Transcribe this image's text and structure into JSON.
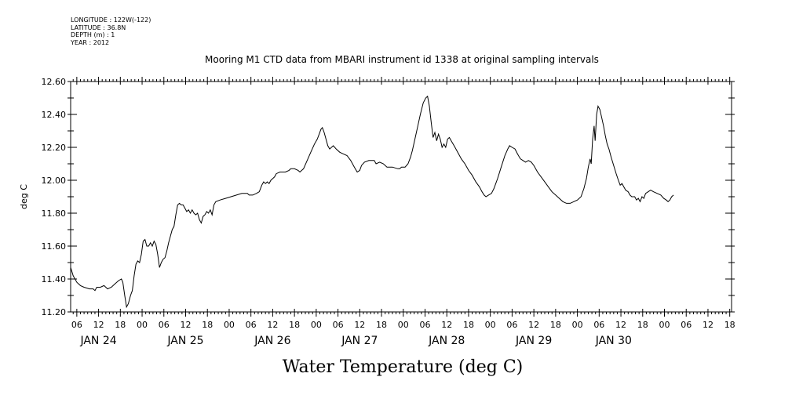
{
  "meta": {
    "longitude": "LONGITUDE : 122W(-122)",
    "latitude": "LATITUDE : 36.8N",
    "depth": "DEPTH (m) : 1",
    "year": "YEAR : 2012"
  },
  "chart_data": {
    "type": "line",
    "title": "Mooring M1 CTD data from MBARI instrument id 1338 at original sampling intervals",
    "xlabel": "Water Temperature (deg C)",
    "ylabel": "deg C",
    "ylim": [
      11.2,
      12.6
    ],
    "yticks": [
      "11.20",
      "11.40",
      "11.60",
      "11.80",
      "12.00",
      "12.20",
      "12.40",
      "12.60"
    ],
    "xlim_hours": [
      4.3,
      186.5
    ],
    "hour_ticks": [
      {
        "h": 6,
        "label": "06"
      },
      {
        "h": 12,
        "label": "12"
      },
      {
        "h": 18,
        "label": "18"
      },
      {
        "h": 24,
        "label": "00"
      },
      {
        "h": 30,
        "label": "06"
      },
      {
        "h": 36,
        "label": "12"
      },
      {
        "h": 42,
        "label": "18"
      },
      {
        "h": 48,
        "label": "00"
      },
      {
        "h": 54,
        "label": "06"
      },
      {
        "h": 60,
        "label": "12"
      },
      {
        "h": 66,
        "label": "18"
      },
      {
        "h": 72,
        "label": "00"
      },
      {
        "h": 78,
        "label": "06"
      },
      {
        "h": 84,
        "label": "12"
      },
      {
        "h": 90,
        "label": "18"
      },
      {
        "h": 96,
        "label": "00"
      },
      {
        "h": 102,
        "label": "06"
      },
      {
        "h": 108,
        "label": "12"
      },
      {
        "h": 114,
        "label": "18"
      },
      {
        "h": 120,
        "label": "00"
      },
      {
        "h": 126,
        "label": "06"
      },
      {
        "h": 132,
        "label": "12"
      },
      {
        "h": 138,
        "label": "18"
      },
      {
        "h": 144,
        "label": "00"
      },
      {
        "h": 150,
        "label": "06"
      },
      {
        "h": 156,
        "label": "12"
      },
      {
        "h": 162,
        "label": "18"
      },
      {
        "h": 168,
        "label": "00"
      },
      {
        "h": 174,
        "label": "06"
      },
      {
        "h": 180,
        "label": "12"
      },
      {
        "h": 186,
        "label": "18"
      }
    ],
    "day_labels": [
      {
        "h": 12,
        "label": "JAN 24"
      },
      {
        "h": 36,
        "label": "JAN 25"
      },
      {
        "h": 60,
        "label": "JAN 26"
      },
      {
        "h": 84,
        "label": "JAN 27"
      },
      {
        "h": 108,
        "label": "JAN 28"
      },
      {
        "h": 132,
        "label": "JAN 29"
      },
      {
        "h": 154,
        "label": "JAN 30"
      }
    ],
    "series": [
      {
        "values": [
          [
            4.3,
            11.47
          ],
          [
            5.0,
            11.42
          ],
          [
            6.0,
            11.38
          ],
          [
            7.0,
            11.36
          ],
          [
            8.0,
            11.35
          ],
          [
            9.5,
            11.34
          ],
          [
            10.5,
            11.34
          ],
          [
            11.0,
            11.33
          ],
          [
            11.5,
            11.35
          ],
          [
            12.5,
            11.35
          ],
          [
            13.5,
            11.36
          ],
          [
            14.5,
            11.34
          ],
          [
            15.5,
            11.35
          ],
          [
            16.5,
            11.37
          ],
          [
            17.5,
            11.39
          ],
          [
            18.3,
            11.4
          ],
          [
            18.7,
            11.38
          ],
          [
            19.2,
            11.3
          ],
          [
            19.7,
            11.23
          ],
          [
            20.2,
            11.25
          ],
          [
            20.8,
            11.3
          ],
          [
            21.3,
            11.33
          ],
          [
            21.8,
            11.42
          ],
          [
            22.3,
            11.49
          ],
          [
            22.8,
            11.51
          ],
          [
            23.3,
            11.5
          ],
          [
            23.8,
            11.55
          ],
          [
            24.3,
            11.63
          ],
          [
            24.8,
            11.64
          ],
          [
            25.3,
            11.6
          ],
          [
            25.8,
            11.6
          ],
          [
            26.3,
            11.62
          ],
          [
            26.8,
            11.6
          ],
          [
            27.3,
            11.63
          ],
          [
            27.8,
            11.61
          ],
          [
            28.3,
            11.55
          ],
          [
            28.8,
            11.47
          ],
          [
            29.3,
            11.5
          ],
          [
            29.8,
            11.52
          ],
          [
            30.3,
            11.53
          ],
          [
            30.8,
            11.57
          ],
          [
            31.3,
            11.62
          ],
          [
            31.8,
            11.66
          ],
          [
            32.3,
            11.7
          ],
          [
            32.8,
            11.72
          ],
          [
            33.3,
            11.79
          ],
          [
            33.8,
            11.85
          ],
          [
            34.3,
            11.86
          ],
          [
            34.8,
            11.85
          ],
          [
            35.3,
            11.85
          ],
          [
            35.8,
            11.83
          ],
          [
            36.3,
            11.81
          ],
          [
            36.8,
            11.82
          ],
          [
            37.3,
            11.8
          ],
          [
            37.8,
            11.82
          ],
          [
            38.3,
            11.8
          ],
          [
            38.8,
            11.79
          ],
          [
            39.3,
            11.8
          ],
          [
            39.8,
            11.76
          ],
          [
            40.3,
            11.74
          ],
          [
            40.8,
            11.78
          ],
          [
            41.3,
            11.79
          ],
          [
            41.8,
            11.81
          ],
          [
            42.3,
            11.8
          ],
          [
            42.8,
            11.82
          ],
          [
            43.3,
            11.79
          ],
          [
            43.8,
            11.85
          ],
          [
            44.3,
            11.87
          ],
          [
            45.5,
            11.88
          ],
          [
            47.0,
            11.89
          ],
          [
            48.5,
            11.9
          ],
          [
            50.0,
            11.91
          ],
          [
            51.5,
            11.92
          ],
          [
            53.0,
            11.92
          ],
          [
            53.5,
            11.91
          ],
          [
            54.5,
            11.91
          ],
          [
            55.5,
            11.92
          ],
          [
            56.3,
            11.93
          ],
          [
            57.0,
            11.97
          ],
          [
            57.5,
            11.99
          ],
          [
            58.0,
            11.98
          ],
          [
            58.5,
            11.99
          ],
          [
            59.0,
            11.98
          ],
          [
            59.5,
            12.0
          ],
          [
            60.0,
            12.01
          ],
          [
            60.5,
            12.02
          ],
          [
            61.0,
            12.04
          ],
          [
            62.0,
            12.05
          ],
          [
            63.5,
            12.05
          ],
          [
            64.5,
            12.06
          ],
          [
            65.0,
            12.07
          ],
          [
            66.0,
            12.07
          ],
          [
            67.0,
            12.06
          ],
          [
            67.5,
            12.05
          ],
          [
            68.5,
            12.07
          ],
          [
            69.5,
            12.12
          ],
          [
            70.5,
            12.17
          ],
          [
            71.5,
            12.22
          ],
          [
            72.3,
            12.25
          ],
          [
            72.8,
            12.28
          ],
          [
            73.3,
            12.31
          ],
          [
            73.7,
            12.32
          ],
          [
            74.2,
            12.29
          ],
          [
            74.7,
            12.25
          ],
          [
            75.2,
            12.21
          ],
          [
            75.7,
            12.19
          ],
          [
            76.2,
            12.2
          ],
          [
            76.7,
            12.21
          ],
          [
            77.5,
            12.19
          ],
          [
            78.5,
            12.17
          ],
          [
            79.5,
            12.16
          ],
          [
            80.5,
            12.15
          ],
          [
            81.5,
            12.12
          ],
          [
            82.5,
            12.08
          ],
          [
            83.3,
            12.05
          ],
          [
            84.0,
            12.06
          ],
          [
            84.5,
            12.09
          ],
          [
            85.3,
            12.11
          ],
          [
            86.5,
            12.12
          ],
          [
            88.0,
            12.12
          ],
          [
            88.5,
            12.1
          ],
          [
            89.5,
            12.11
          ],
          [
            90.5,
            12.1
          ],
          [
            91.5,
            12.08
          ],
          [
            93.0,
            12.08
          ],
          [
            94.5,
            12.07
          ],
          [
            95.0,
            12.07
          ],
          [
            95.5,
            12.08
          ],
          [
            96.5,
            12.08
          ],
          [
            97.3,
            12.1
          ],
          [
            98.0,
            12.14
          ],
          [
            98.5,
            12.18
          ],
          [
            99.2,
            12.25
          ],
          [
            100.0,
            12.33
          ],
          [
            100.7,
            12.4
          ],
          [
            101.5,
            12.47
          ],
          [
            102.2,
            12.5
          ],
          [
            102.7,
            12.51
          ],
          [
            103.2,
            12.45
          ],
          [
            103.7,
            12.35
          ],
          [
            104.2,
            12.26
          ],
          [
            104.7,
            12.29
          ],
          [
            105.2,
            12.24
          ],
          [
            105.7,
            12.28
          ],
          [
            106.2,
            12.25
          ],
          [
            106.7,
            12.2
          ],
          [
            107.2,
            12.22
          ],
          [
            107.7,
            12.2
          ],
          [
            108.2,
            12.25
          ],
          [
            108.7,
            12.26
          ],
          [
            109.2,
            12.24
          ],
          [
            110.0,
            12.21
          ],
          [
            111.0,
            12.17
          ],
          [
            112.0,
            12.13
          ],
          [
            113.0,
            12.1
          ],
          [
            114.0,
            12.06
          ],
          [
            115.0,
            12.03
          ],
          [
            116.0,
            11.99
          ],
          [
            117.0,
            11.96
          ],
          [
            117.7,
            11.93
          ],
          [
            118.3,
            11.91
          ],
          [
            118.8,
            11.9
          ],
          [
            119.5,
            11.91
          ],
          [
            120.3,
            11.92
          ],
          [
            121.0,
            11.95
          ],
          [
            122.0,
            12.01
          ],
          [
            123.0,
            12.08
          ],
          [
            124.0,
            12.15
          ],
          [
            124.8,
            12.19
          ],
          [
            125.3,
            12.21
          ],
          [
            126.0,
            12.2
          ],
          [
            126.8,
            12.19
          ],
          [
            127.5,
            12.16
          ],
          [
            128.3,
            12.13
          ],
          [
            129.0,
            12.12
          ],
          [
            129.7,
            12.11
          ],
          [
            130.5,
            12.12
          ],
          [
            131.3,
            12.11
          ],
          [
            132.0,
            12.09
          ],
          [
            133.0,
            12.05
          ],
          [
            134.0,
            12.02
          ],
          [
            135.0,
            11.99
          ],
          [
            136.0,
            11.96
          ],
          [
            137.0,
            11.93
          ],
          [
            138.0,
            11.91
          ],
          [
            139.0,
            11.89
          ],
          [
            140.0,
            11.87
          ],
          [
            141.0,
            11.86
          ],
          [
            142.0,
            11.86
          ],
          [
            143.0,
            11.87
          ],
          [
            144.0,
            11.88
          ],
          [
            145.0,
            11.9
          ],
          [
            145.8,
            11.95
          ],
          [
            146.5,
            12.01
          ],
          [
            147.0,
            12.08
          ],
          [
            147.5,
            12.13
          ],
          [
            147.8,
            12.1
          ],
          [
            148.2,
            12.25
          ],
          [
            148.6,
            12.33
          ],
          [
            148.9,
            12.24
          ],
          [
            149.3,
            12.4
          ],
          [
            149.7,
            12.45
          ],
          [
            150.2,
            12.43
          ],
          [
            150.7,
            12.38
          ],
          [
            151.2,
            12.33
          ],
          [
            151.7,
            12.27
          ],
          [
            152.2,
            12.22
          ],
          [
            152.7,
            12.19
          ],
          [
            153.3,
            12.14
          ],
          [
            154.0,
            12.09
          ],
          [
            154.7,
            12.04
          ],
          [
            155.3,
            12.0
          ],
          [
            155.8,
            11.97
          ],
          [
            156.3,
            11.98
          ],
          [
            156.8,
            11.96
          ],
          [
            157.3,
            11.94
          ],
          [
            158.0,
            11.93
          ],
          [
            158.5,
            11.91
          ],
          [
            159.0,
            11.9
          ],
          [
            159.8,
            11.9
          ],
          [
            160.3,
            11.88
          ],
          [
            160.8,
            11.89
          ],
          [
            161.3,
            11.87
          ],
          [
            161.8,
            11.9
          ],
          [
            162.3,
            11.89
          ],
          [
            162.8,
            11.92
          ],
          [
            163.5,
            11.93
          ],
          [
            164.2,
            11.94
          ],
          [
            165.0,
            11.93
          ],
          [
            166.0,
            11.92
          ],
          [
            167.0,
            11.91
          ],
          [
            167.8,
            11.89
          ],
          [
            168.5,
            11.88
          ],
          [
            169.0,
            11.87
          ],
          [
            169.5,
            11.88
          ],
          [
            170.0,
            11.9
          ],
          [
            170.5,
            11.91
          ]
        ]
      }
    ]
  }
}
